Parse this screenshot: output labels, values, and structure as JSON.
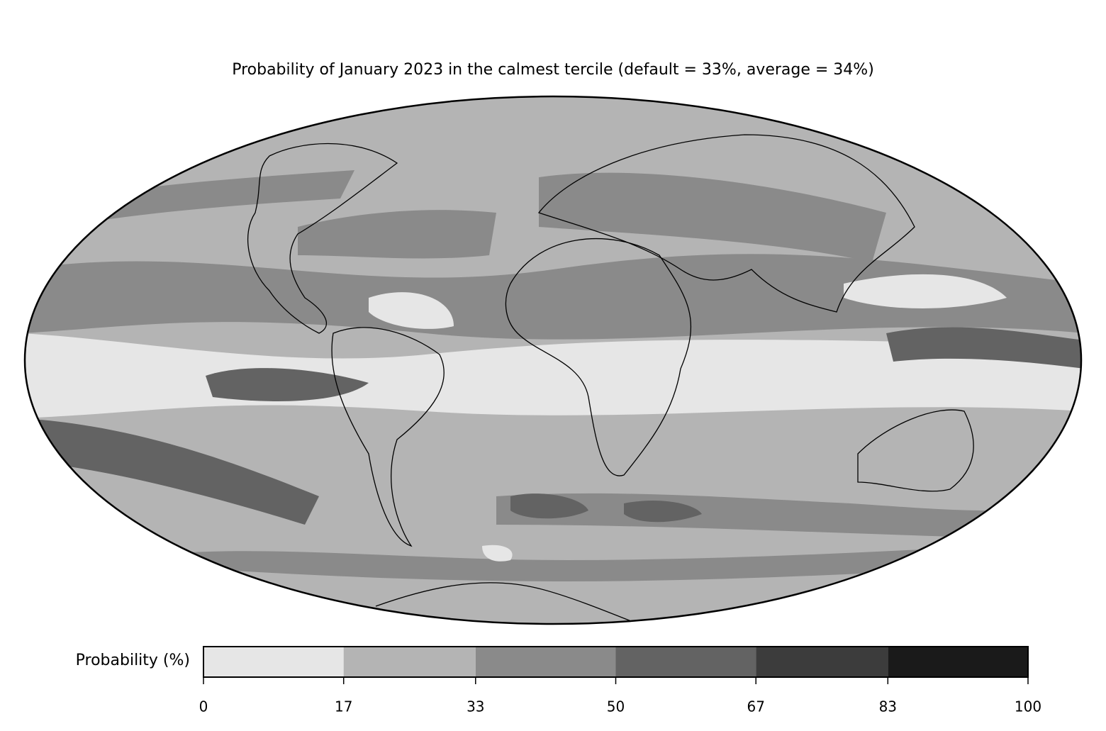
{
  "title": "Probability of January 2023 in the calmest tercile (default = 33%, average = 34%)",
  "colorbar": {
    "label": "Probability (%)",
    "ticks": [
      0,
      17,
      33,
      50,
      67,
      83,
      100
    ],
    "colors": [
      "#e6e6e6",
      "#b4b4b4",
      "#8a8a8a",
      "#636363",
      "#3c3c3c",
      "#1a1a1a"
    ]
  }
}
